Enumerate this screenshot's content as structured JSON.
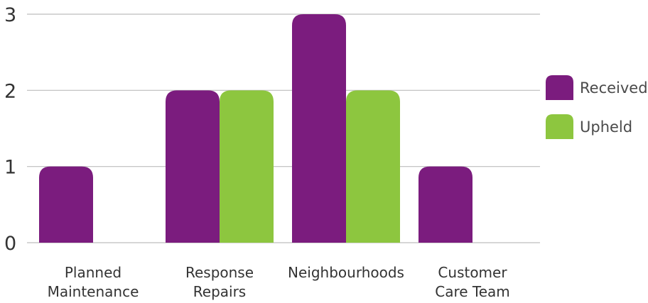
{
  "chart_data": {
    "type": "bar",
    "categories": [
      [
        "Planned",
        "Maintenance"
      ],
      [
        "Response",
        "Repairs"
      ],
      [
        "Neighbourhoods"
      ],
      [
        "Customer",
        "Care Team"
      ]
    ],
    "series": [
      {
        "name": "Received",
        "color": "#7b1c7e",
        "values": [
          1,
          2,
          3,
          1
        ]
      },
      {
        "name": "Upheld",
        "color": "#8dc63f",
        "values": [
          0,
          2,
          2,
          0
        ]
      }
    ],
    "y_ticks": [
      "0",
      "1",
      "2",
      "3"
    ],
    "ylim": [
      0,
      3
    ],
    "grid": true,
    "legend_position": "right"
  }
}
